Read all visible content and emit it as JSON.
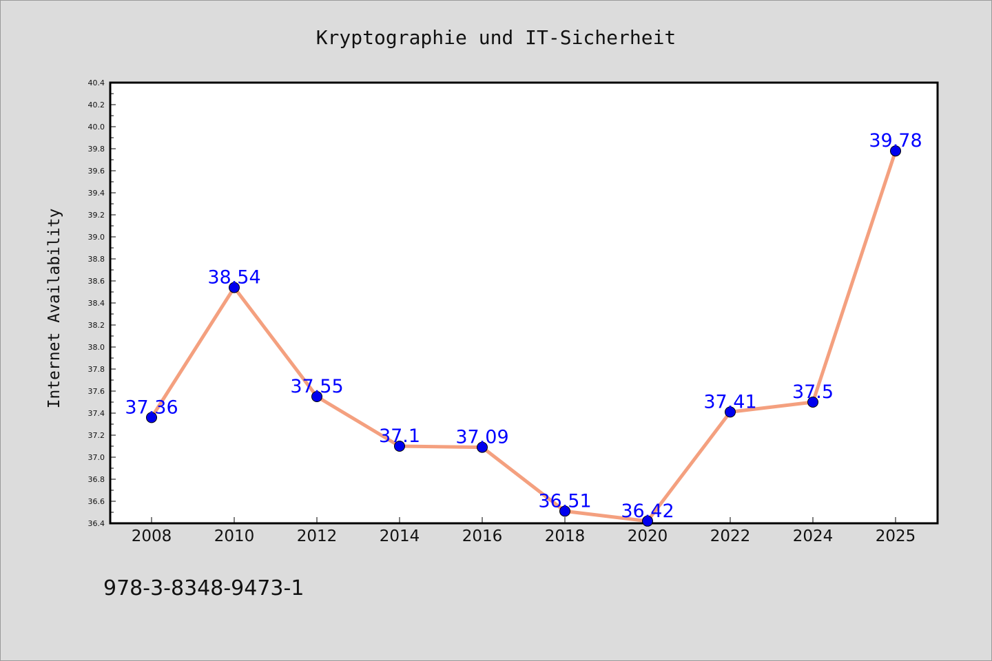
{
  "chart_data": {
    "type": "line",
    "title": "Kryptographie und IT-Sicherheit",
    "xlabel": "",
    "ylabel": "Internet Availability",
    "x": [
      "2008",
      "2010",
      "2012",
      "2014",
      "2016",
      "2018",
      "2020",
      "2022",
      "2024",
      "2025"
    ],
    "series": [
      {
        "values": [
          37.36,
          38.54,
          37.55,
          37.1,
          37.09,
          36.51,
          36.42,
          37.41,
          37.5,
          39.78
        ],
        "data_labels": [
          "37.36",
          "38.54",
          "37.55",
          "37.1",
          "37.09",
          "36.51",
          "36.42",
          "37.41",
          "37.5",
          "39.78"
        ]
      }
    ],
    "ylim": [
      36.4,
      40.4
    ],
    "yticks": [
      "36.4",
      "36.6",
      "36.8",
      "37.0",
      "37.2",
      "37.4",
      "37.6",
      "37.8",
      "38.0",
      "38.2",
      "38.4",
      "38.6",
      "38.8",
      "39.0",
      "39.2",
      "39.4",
      "39.6",
      "39.8",
      "40.0",
      "40.2",
      "40.4"
    ],
    "grid": false,
    "colors": {
      "line": "#f4a07f",
      "marker": "#0000ee",
      "data_label": "#0000ff",
      "background": "#dcdcdc",
      "plot_area": "#ffffff"
    }
  },
  "footer_text": "978-3-8348-9473-1"
}
